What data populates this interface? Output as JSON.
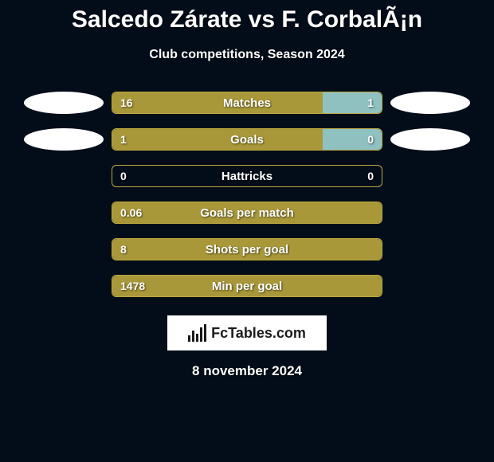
{
  "title": "Salcedo Zárate vs F. CorbalÃ¡n",
  "subtitle": "Club competitions, Season 2024",
  "date": "8 november 2024",
  "watermark_text": "FcTables.com",
  "colors": {
    "background": "#020d19",
    "bar_left": "#a9983a",
    "bar_right": "#8fc1c1",
    "bar_border": "#bca83e",
    "pill": "#ffffff",
    "text": "#ffffff"
  },
  "rows": [
    {
      "label": "Matches",
      "left_value": "16",
      "right_value": "1",
      "left_pct": 78,
      "right_pct": 22,
      "show_pills": true
    },
    {
      "label": "Goals",
      "left_value": "1",
      "right_value": "0",
      "left_pct": 78,
      "right_pct": 22,
      "show_pills": true
    },
    {
      "label": "Hattricks",
      "left_value": "0",
      "right_value": "0",
      "left_pct": 0,
      "right_pct": 0,
      "show_pills": false
    },
    {
      "label": "Goals per match",
      "left_value": "0.06",
      "right_value": "",
      "left_pct": 100,
      "right_pct": 0,
      "show_pills": false
    },
    {
      "label": "Shots per goal",
      "left_value": "8",
      "right_value": "",
      "left_pct": 100,
      "right_pct": 0,
      "show_pills": false
    },
    {
      "label": "Min per goal",
      "left_value": "1478",
      "right_value": "",
      "left_pct": 100,
      "right_pct": 0,
      "show_pills": false
    }
  ]
}
